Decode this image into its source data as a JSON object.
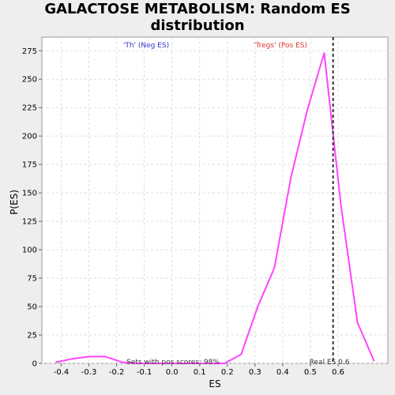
{
  "chart_data": {
    "type": "line",
    "title": [
      "GALACTOSE METABOLISM: Random ES",
      "distribution"
    ],
    "xlabel": "ES",
    "ylabel": "P(ES)",
    "xlim": [
      -0.47,
      0.78
    ],
    "ylim": [
      0,
      287
    ],
    "x_ticks": [
      -0.4,
      -0.3,
      -0.2,
      -0.1,
      0.0,
      0.1,
      0.2,
      0.3,
      0.4,
      0.5,
      0.6
    ],
    "x_tick_labels": [
      "-0.4",
      "-0.3",
      "-0.2",
      "-0.1",
      "0.0",
      "0.1",
      "0.2",
      "0.3",
      "0.4",
      "0.5",
      "0.6"
    ],
    "y_ticks": [
      0,
      25,
      50,
      75,
      100,
      125,
      150,
      175,
      200,
      225,
      250,
      275
    ],
    "y_tick_labels": [
      "0",
      "25",
      "50",
      "75",
      "100",
      "125",
      "150",
      "175",
      "200",
      "225",
      "250",
      "275"
    ],
    "grid": true,
    "series": [
      {
        "color": "#ff44ff",
        "x": [
          -0.42,
          -0.36,
          -0.3,
          -0.24,
          -0.18,
          -0.12,
          -0.06,
          0.0,
          0.07,
          0.13,
          0.19,
          0.25,
          0.31,
          0.37,
          0.43,
          0.49,
          0.55,
          0.61,
          0.67,
          0.73
        ],
        "y": [
          1,
          4,
          6,
          6,
          1,
          0,
          0,
          0,
          0,
          0,
          0,
          8,
          50,
          84,
          164,
          224,
          273,
          140,
          36,
          2
        ]
      }
    ],
    "real_es": 0.582,
    "annotations": {
      "neg_label": "'Th' (Neg ES)",
      "pos_label": "'Tregs' (Pos ES)",
      "sets_pos": "Sets with pos scores: 98%",
      "real_es_label": "Real ES 0.6"
    },
    "colors": {
      "neg_label": "#3333cc",
      "pos_label": "#dd3333",
      "annot_text": "#333333",
      "real_es_line": "#333333",
      "grid": "#dddddd"
    }
  }
}
